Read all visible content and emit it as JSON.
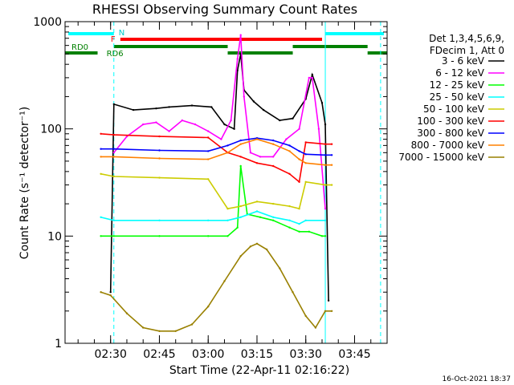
{
  "chart_data": {
    "type": "line",
    "title": "RHESSI Observing Summary Count Rates",
    "xlabel": "Start Time (22-Apr-11 02:16:22)",
    "ylabel": "Count Rate (s⁻¹ detector⁻¹)",
    "yscale": "log",
    "ylim": [
      1,
      1000
    ],
    "xlim": [
      "02:16",
      "03:55"
    ],
    "yticks": [
      {
        "value": 1,
        "label": "1"
      },
      {
        "value": 10,
        "label": "10"
      },
      {
        "value": 100,
        "label": "100"
      },
      {
        "value": 1000,
        "label": "1000"
      }
    ],
    "xticks": [
      {
        "value": "02:30",
        "label": "02:30"
      },
      {
        "value": "02:45",
        "label": "02:45"
      },
      {
        "value": "03:00",
        "label": "03:00"
      },
      {
        "value": "03:15",
        "label": "03:15"
      },
      {
        "value": "03:30",
        "label": "03:30"
      },
      {
        "value": "03:45",
        "label": "03:45"
      }
    ],
    "legend_header": [
      "Det 1,3,4,5,6,9,",
      "FDecim 1, Att 0"
    ],
    "legend_position": "right",
    "series": [
      {
        "name": "3 - 6 keV",
        "color": "#000000",
        "x": [
          "02:30",
          "02:31",
          "02:37",
          "02:44",
          "02:48",
          "02:55",
          "03:01",
          "03:05",
          "03:08",
          "03:09",
          "03:10",
          "03:11",
          "03:14",
          "03:17",
          "03:22",
          "03:26",
          "03:30",
          "03:32",
          "03:35",
          "03:36",
          "03:37"
        ],
        "y": [
          3,
          170,
          150,
          155,
          160,
          165,
          160,
          110,
          100,
          350,
          500,
          230,
          180,
          150,
          120,
          125,
          190,
          320,
          175,
          110,
          2.5
        ]
      },
      {
        "name": "6 - 12 keV",
        "color": "#ff00ff",
        "x": [
          "02:31",
          "02:35",
          "02:40",
          "02:44",
          "02:48",
          "02:52",
          "02:56",
          "03:00",
          "03:04",
          "03:07",
          "03:09",
          "03:10",
          "03:11",
          "03:13",
          "03:16",
          "03:20",
          "03:24",
          "03:28",
          "03:31",
          "03:32",
          "03:34",
          "03:36"
        ],
        "y": [
          60,
          85,
          110,
          115,
          95,
          120,
          110,
          95,
          80,
          120,
          450,
          750,
          200,
          60,
          55,
          55,
          80,
          100,
          300,
          300,
          100,
          18
        ]
      },
      {
        "name": "12 - 25 keV",
        "color": "#00ff00",
        "x": [
          "02:27",
          "02:31",
          "02:45",
          "03:00",
          "03:06",
          "03:09",
          "03:10",
          "03:12",
          "03:16",
          "03:20",
          "03:25",
          "03:28",
          "03:31",
          "03:35",
          "03:36"
        ],
        "y": [
          10,
          10,
          10,
          10,
          10,
          12,
          45,
          16,
          15,
          14,
          12,
          11,
          11,
          10,
          10
        ]
      },
      {
        "name": "25 - 50 keV",
        "color": "#00ffff",
        "x": [
          "02:27",
          "02:31",
          "02:45",
          "03:00",
          "03:06",
          "03:10",
          "03:15",
          "03:20",
          "03:25",
          "03:28",
          "03:30",
          "03:36"
        ],
        "y": [
          15,
          14,
          14,
          14,
          14,
          15,
          17,
          15,
          14,
          13,
          14,
          14
        ]
      },
      {
        "name": "50 - 100 keV",
        "color": "#cccc00",
        "x": [
          "02:27",
          "02:31",
          "02:45",
          "03:00",
          "03:06",
          "03:10",
          "03:15",
          "03:20",
          "03:25",
          "03:28",
          "03:30",
          "03:36",
          "03:38"
        ],
        "y": [
          38,
          36,
          35,
          34,
          18,
          19,
          21,
          20,
          19,
          18,
          32,
          30,
          30
        ]
      },
      {
        "name": "100 - 300 keV",
        "color": "#ff0000",
        "x": [
          "02:27",
          "02:31",
          "02:45",
          "03:00",
          "03:06",
          "03:10",
          "03:15",
          "03:20",
          "03:25",
          "03:28",
          "03:30",
          "03:36",
          "03:38"
        ],
        "y": [
          90,
          88,
          85,
          83,
          60,
          55,
          48,
          45,
          38,
          32,
          75,
          72,
          72
        ]
      },
      {
        "name": "300 - 800 keV",
        "color": "#0000ff",
        "x": [
          "02:27",
          "02:31",
          "02:45",
          "03:00",
          "03:06",
          "03:10",
          "03:15",
          "03:20",
          "03:25",
          "03:28",
          "03:30",
          "03:36",
          "03:38"
        ],
        "y": [
          65,
          65,
          63,
          62,
          70,
          78,
          82,
          78,
          70,
          62,
          58,
          57,
          57
        ]
      },
      {
        "name": "800 - 7000 keV",
        "color": "#ff8000",
        "x": [
          "02:27",
          "02:31",
          "02:45",
          "03:00",
          "03:06",
          "03:10",
          "03:15",
          "03:20",
          "03:25",
          "03:28",
          "03:30",
          "03:36",
          "03:38"
        ],
        "y": [
          55,
          55,
          53,
          52,
          60,
          72,
          80,
          72,
          62,
          52,
          48,
          46,
          46
        ]
      },
      {
        "name": "7000 - 15000 keV",
        "color": "#998000",
        "x": [
          "02:27",
          "02:30",
          "02:35",
          "02:40",
          "02:45",
          "02:50",
          "02:55",
          "03:00",
          "03:05",
          "03:10",
          "03:13",
          "03:15",
          "03:18",
          "03:22",
          "03:26",
          "03:30",
          "03:33",
          "03:36",
          "03:38"
        ],
        "y": [
          3,
          2.8,
          1.9,
          1.4,
          1.3,
          1.3,
          1.5,
          2.2,
          3.8,
          6.5,
          8,
          8.5,
          7.5,
          5,
          3,
          1.8,
          1.4,
          2,
          2
        ]
      }
    ],
    "annotations": {
      "attenuator_flag_label": "F",
      "night_flag_label": "N",
      "rd0_label": "RD0",
      "rd6_label": "RD6"
    }
  },
  "timestamp": "16-Oct-2021 18:37"
}
